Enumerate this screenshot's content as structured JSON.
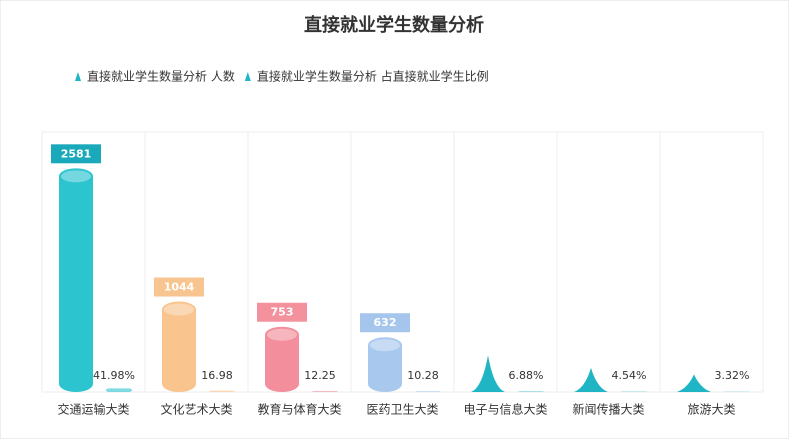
{
  "chart_data": {
    "type": "bar",
    "title": "直接就业学生数量分析",
    "categories": [
      "交通运输大类",
      "文化艺术大类",
      "教育与体育大类",
      "医药卫生大类",
      "电子与信息大类",
      "新闻传播大类",
      "旅游大类"
    ],
    "series": [
      {
        "name": "直接就业学生数量分析 人数",
        "color": "#1fb5c4",
        "colors": [
          "#2cc4cf",
          "#f9c48e",
          "#f38f9c",
          "#a9c8ee",
          "#1fb5c4",
          "#1fb5c4",
          "#1fb5c4"
        ],
        "label_colors": [
          "#1aa9ba",
          "#f8c48f",
          "#f3919d",
          "#a6c5ec",
          null,
          null,
          null
        ],
        "shapes": [
          "cylinder",
          "cylinder",
          "cylinder",
          "cylinder",
          "cone",
          "cone",
          "cone"
        ],
        "values": [
          2581,
          1044,
          753,
          632,
          423,
          279,
          204
        ],
        "value_labels": [
          "2581",
          "1044",
          "753",
          "632",
          null,
          null,
          null
        ]
      },
      {
        "name": "直接就业学生数量分析 占直接就业学生比例",
        "color": "#1fb5c4",
        "values": [
          41.98,
          16.98,
          12.25,
          10.28,
          6.88,
          4.54,
          3.32
        ],
        "value_labels": [
          "41.98%",
          "16.98",
          "12.25",
          "10.28",
          "6.88%",
          "4.54%",
          "3.32%"
        ]
      }
    ],
    "ylim": [
      0,
      3000
    ]
  }
}
